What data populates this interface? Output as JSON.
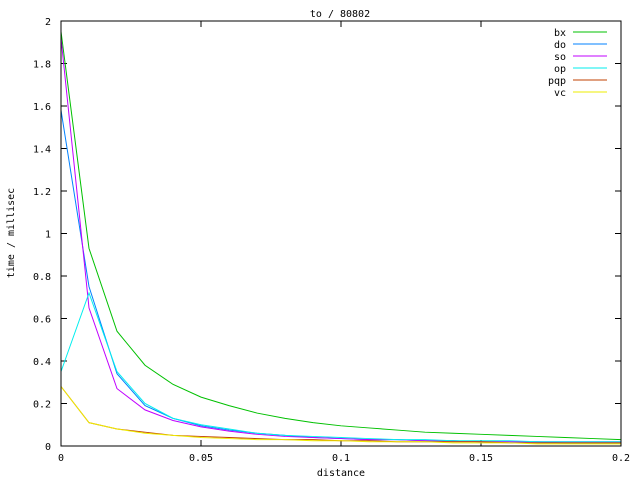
{
  "chart_data": {
    "type": "line",
    "title": "to / 80802",
    "xlabel": "distance",
    "ylabel": "time / millisec",
    "xlim": [
      0,
      0.2
    ],
    "ylim": [
      0,
      2
    ],
    "grid": false,
    "legend_placement": "top-right",
    "x_ticks": [
      "0",
      "0.05",
      "0.1",
      "0.15",
      "0.2"
    ],
    "y_ticks": [
      "0",
      "0.2",
      "0.4",
      "0.6",
      "0.8",
      "1",
      "1.2",
      "1.4",
      "1.6",
      "1.8",
      "2"
    ],
    "x": [
      0,
      0.01,
      0.02,
      0.03,
      0.04,
      0.05,
      0.06,
      0.07,
      0.08,
      0.09,
      0.1,
      0.11,
      0.12,
      0.13,
      0.14,
      0.15,
      0.16,
      0.17,
      0.18,
      0.19,
      0.2
    ],
    "series": [
      {
        "name": "bx",
        "color": "#00c000",
        "values": [
          1.95,
          0.93,
          0.54,
          0.38,
          0.29,
          0.23,
          0.19,
          0.155,
          0.13,
          0.11,
          0.095,
          0.085,
          0.075,
          0.065,
          0.06,
          0.055,
          0.05,
          0.045,
          0.04,
          0.035,
          0.03
        ]
      },
      {
        "name": "do",
        "color": "#0080ff",
        "values": [
          1.58,
          0.75,
          0.34,
          0.19,
          0.13,
          0.095,
          0.075,
          0.06,
          0.05,
          0.04,
          0.035,
          0.03,
          0.03,
          0.025,
          0.025,
          0.02,
          0.02,
          0.02,
          0.015,
          0.015,
          0.015
        ]
      },
      {
        "name": "so",
        "color": "#c000ff",
        "values": [
          1.92,
          0.65,
          0.27,
          0.17,
          0.12,
          0.09,
          0.07,
          0.055,
          0.045,
          0.04,
          0.035,
          0.03,
          0.03,
          0.025,
          0.025,
          0.02,
          0.02,
          0.02,
          0.02,
          0.02,
          0.02
        ]
      },
      {
        "name": "op",
        "color": "#00eeee",
        "values": [
          0.35,
          0.72,
          0.35,
          0.2,
          0.13,
          0.1,
          0.08,
          0.06,
          0.05,
          0.045,
          0.04,
          0.035,
          0.03,
          0.03,
          0.025,
          0.025,
          0.025,
          0.02,
          0.02,
          0.02,
          0.02
        ]
      },
      {
        "name": "pqp",
        "color": "#c04000",
        "values": [
          0.28,
          0.11,
          0.08,
          0.065,
          0.05,
          0.045,
          0.04,
          0.035,
          0.03,
          0.03,
          0.025,
          0.025,
          0.02,
          0.02,
          0.02,
          0.02,
          0.015,
          0.015,
          0.015,
          0.015,
          0.015
        ]
      },
      {
        "name": "vc",
        "color": "#eeee00",
        "values": [
          0.28,
          0.11,
          0.08,
          0.06,
          0.05,
          0.04,
          0.035,
          0.03,
          0.03,
          0.025,
          0.025,
          0.02,
          0.02,
          0.02,
          0.015,
          0.015,
          0.015,
          0.01,
          0.01,
          0.01,
          0.01
        ]
      }
    ]
  }
}
